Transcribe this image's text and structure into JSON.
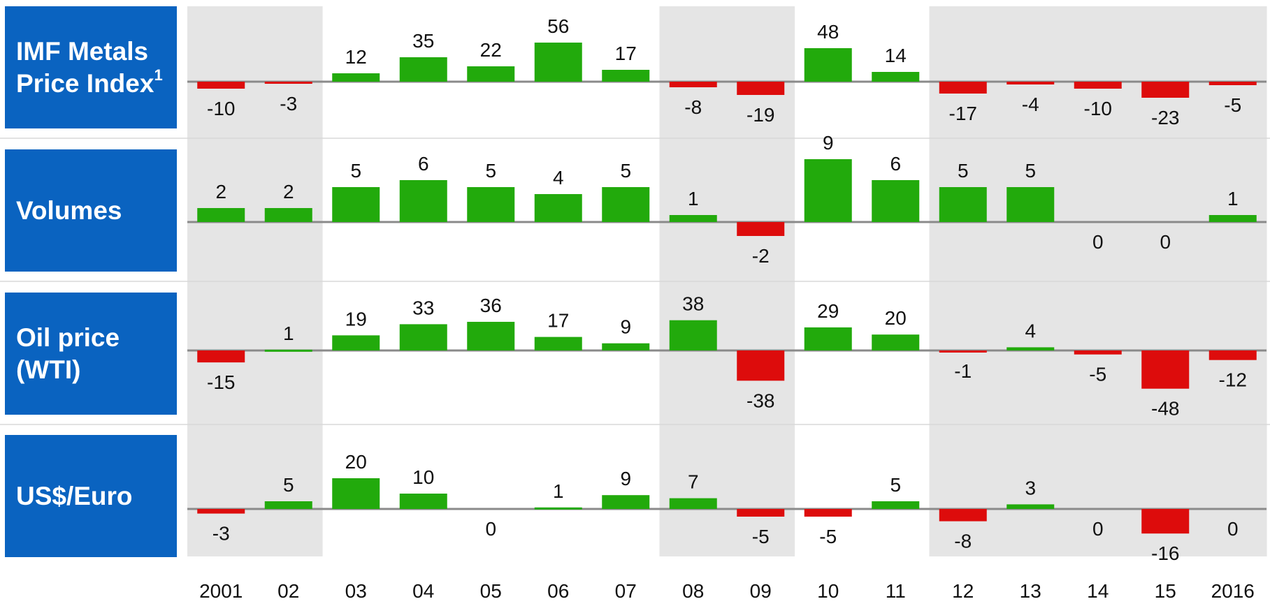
{
  "chart_data": {
    "type": "bar",
    "categories": [
      "2001",
      "02",
      "03",
      "04",
      "05",
      "06",
      "07",
      "08",
      "09",
      "10",
      "11",
      "12",
      "13",
      "14",
      "15",
      "2016"
    ],
    "shaded_columns": [
      "2001",
      "02",
      "08",
      "09",
      "12",
      "13",
      "14",
      "15",
      "2016"
    ],
    "colors": {
      "positive": "#22aa0c",
      "negative": "#dd0c0c",
      "shade": "#e5e5e5",
      "label_bg": "#0a63c0",
      "zero_line": "#8a8a8a"
    },
    "series": [
      {
        "name": "IMF Metals Price Index",
        "superscript": "1",
        "values": [
          -10,
          -3,
          12,
          35,
          22,
          56,
          17,
          -8,
          -19,
          48,
          14,
          -17,
          -4,
          -10,
          -23,
          -5
        ]
      },
      {
        "name": "Volumes",
        "values": [
          2,
          2,
          5,
          6,
          5,
          4,
          5,
          1,
          -2,
          9,
          6,
          5,
          5,
          0,
          0,
          1
        ]
      },
      {
        "name": "Oil price (WTI)",
        "values": [
          -15,
          1,
          19,
          33,
          36,
          17,
          9,
          38,
          -38,
          29,
          20,
          -1,
          4,
          -5,
          -48,
          -12
        ]
      },
      {
        "name": "US$/Euro",
        "values": [
          -3,
          5,
          20,
          10,
          0,
          1,
          9,
          7,
          -5,
          -5,
          5,
          -8,
          3,
          0,
          -16,
          0
        ]
      }
    ]
  }
}
